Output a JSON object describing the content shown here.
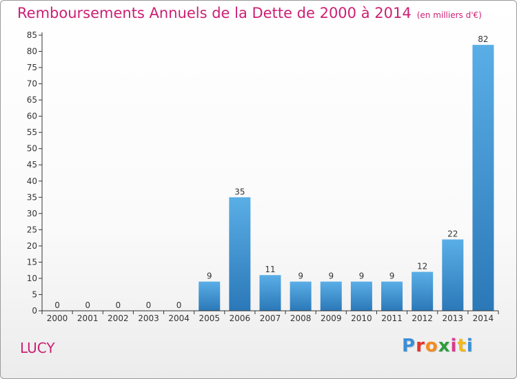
{
  "title": "Remboursements Annuels de la Dette de 2000 à 2014",
  "unit": "(en milliers d'€)",
  "commune": "LUCY",
  "logo": {
    "text": "Proxiti",
    "letter_colors": [
      "#3a8fd6",
      "#e8312a",
      "#f28c1e",
      "#2e9c3c",
      "#d83a8f",
      "#f2b81e",
      "#3a8fd6"
    ]
  },
  "colors": {
    "bar_top": "#5aaee6",
    "bar_bottom": "#2b78b8",
    "accent": "#cc1f73",
    "axis": "#333333",
    "grid": "#e6e6e6"
  },
  "chart_data": {
    "type": "bar",
    "categories": [
      "2000",
      "2001",
      "2002",
      "2003",
      "2004",
      "2005",
      "2006",
      "2007",
      "2008",
      "2009",
      "2010",
      "2011",
      "2012",
      "2013",
      "2014"
    ],
    "values": [
      0,
      0,
      0,
      0,
      0,
      9,
      35,
      11,
      9,
      9,
      9,
      9,
      12,
      22,
      82
    ],
    "ylim": [
      0,
      85
    ],
    "yticks": [
      0,
      5,
      10,
      15,
      20,
      25,
      30,
      35,
      40,
      45,
      50,
      55,
      60,
      65,
      70,
      75,
      80,
      85
    ],
    "data_labels": true,
    "grid": false
  }
}
